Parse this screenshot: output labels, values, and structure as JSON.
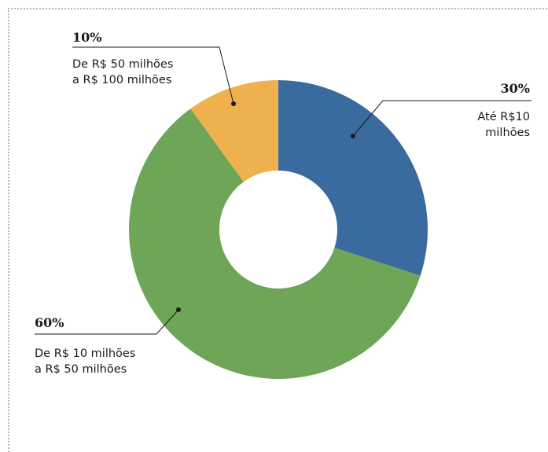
{
  "chart_data": {
    "type": "pie",
    "donut": true,
    "slices": [
      {
        "label_lines": [
          "Até R$10",
          "milhões"
        ],
        "value": 30,
        "percent_label": "30%",
        "color": "#3a6b9e"
      },
      {
        "label_lines": [
          "De R$ 10 milhões",
          "a R$ 50 milhões"
        ],
        "value": 60,
        "percent_label": "60%",
        "color": "#6ea556"
      },
      {
        "label_lines": [
          "De R$ 50 milhões",
          "a R$ 100 milhões"
        ],
        "value": 10,
        "percent_label": "10%",
        "color": "#eeb14e"
      }
    ]
  }
}
